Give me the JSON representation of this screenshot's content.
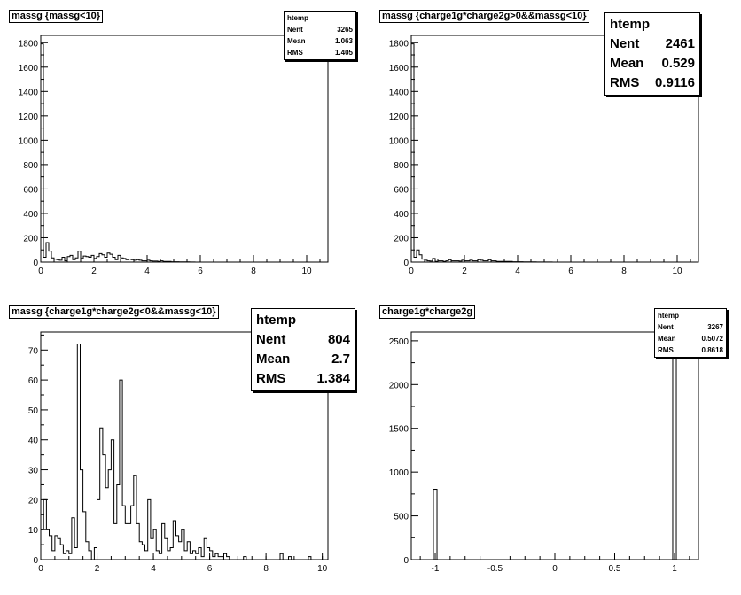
{
  "chart_data": [
    {
      "type": "bar",
      "title": "massg {massg<10}",
      "stats": {
        "name": "htemp",
        "entries_label": "Nent",
        "entries": "3265",
        "mean_label": "Mean",
        "mean": "1.063",
        "rms_label": "RMS",
        "rms": "1.405"
      },
      "xlim": [
        0,
        10.8
      ],
      "ylim": [
        0,
        1860
      ],
      "xticks": [
        0,
        2,
        4,
        6,
        8,
        10
      ],
      "yticks": [
        0,
        200,
        400,
        600,
        800,
        1000,
        1200,
        1400,
        1600,
        1800
      ],
      "bin_width": 0.1,
      "values": [
        1790,
        40,
        160,
        90,
        35,
        25,
        20,
        15,
        40,
        10,
        45,
        55,
        20,
        35,
        90,
        30,
        50,
        45,
        40,
        55,
        30,
        45,
        70,
        60,
        40,
        75,
        65,
        40,
        20,
        55,
        35,
        30,
        20,
        25,
        20,
        15,
        20,
        15,
        10,
        10,
        15,
        10,
        8,
        8,
        5,
        10,
        5,
        5,
        5,
        3,
        3,
        3,
        2,
        2,
        2,
        2,
        1,
        1,
        0,
        0
      ]
    },
    {
      "type": "bar",
      "title": "massg {charge1g*charge2g>0&&massg<10}",
      "stats": {
        "name": "htemp",
        "entries_label": "Nent",
        "entries": "2461",
        "mean_label": "Mean",
        "mean": "0.529",
        "rms_label": "RMS",
        "rms": "0.9116"
      },
      "xlim": [
        0,
        10.8
      ],
      "ylim": [
        0,
        1860
      ],
      "xticks": [
        0,
        2,
        4,
        6,
        8,
        10
      ],
      "yticks": [
        0,
        200,
        400,
        600,
        800,
        1000,
        1200,
        1400,
        1600,
        1800
      ],
      "bin_width": 0.1,
      "values": [
        1790,
        40,
        100,
        60,
        25,
        15,
        10,
        8,
        30,
        5,
        10,
        10,
        5,
        10,
        20,
        10,
        10,
        10,
        8,
        15,
        10,
        10,
        15,
        10,
        10,
        20,
        15,
        10,
        10,
        20,
        10,
        10,
        5,
        5,
        5,
        5,
        5,
        5,
        3,
        3,
        3,
        3,
        2,
        2,
        2,
        2,
        2,
        1,
        1,
        1,
        1,
        1,
        1,
        0,
        0,
        0,
        0,
        0,
        0,
        0
      ]
    },
    {
      "type": "bar",
      "title": "massg {charge1g*charge2g<0&&massg<10}",
      "stats": {
        "name": "htemp",
        "entries_label": "Nent",
        "entries": "804",
        "mean_label": "Mean",
        "mean": "2.7",
        "rms_label": "RMS",
        "rms": "1.384"
      },
      "xlim": [
        0,
        10.2
      ],
      "ylim": [
        0,
        76
      ],
      "xticks": [
        0,
        2,
        4,
        6,
        8,
        10
      ],
      "yticks": [
        0,
        10,
        20,
        30,
        40,
        50,
        60,
        70
      ],
      "bin_width": 0.1,
      "values": [
        10,
        20,
        10,
        8,
        3,
        8,
        7,
        5,
        2,
        3,
        2,
        14,
        4,
        72,
        30,
        16,
        6,
        3,
        0,
        4,
        20,
        44,
        35,
        24,
        30,
        40,
        12,
        25,
        60,
        18,
        12,
        12,
        18,
        28,
        12,
        6,
        5,
        3,
        20,
        7,
        10,
        3,
        2,
        12,
        7,
        3,
        4,
        13,
        8,
        6,
        10,
        3,
        6,
        2,
        3,
        2,
        4,
        1,
        7,
        4,
        3,
        1,
        2,
        1,
        1,
        2,
        1,
        0,
        0,
        0,
        0,
        0,
        1,
        0,
        0,
        0,
        0,
        0,
        0,
        0,
        0,
        0,
        0,
        0,
        0,
        2,
        0,
        0,
        1,
        0,
        0,
        0,
        0,
        0,
        0,
        1,
        0,
        0,
        0,
        0
      ]
    },
    {
      "type": "bar",
      "title": "charge1g*charge2g",
      "stats": {
        "name": "htemp",
        "entries_label": "Nent",
        "entries": "3267",
        "mean_label": "Mean",
        "mean": "0.5072",
        "rms_label": "RMS",
        "rms": "0.8618"
      },
      "xlim": [
        -1.2,
        1.2
      ],
      "ylim": [
        0,
        2600
      ],
      "xticks": [
        -1,
        -0.5,
        0,
        0.5,
        1
      ],
      "xtick_labels": [
        "-1",
        "-0.5",
        "0",
        "0.5",
        "1"
      ],
      "yticks": [
        0,
        500,
        1000,
        1500,
        2000,
        2500
      ],
      "bars": [
        {
          "x": -1,
          "value": 804
        },
        {
          "x": 1,
          "value": 2461
        }
      ],
      "bar_width": 0.03
    }
  ]
}
